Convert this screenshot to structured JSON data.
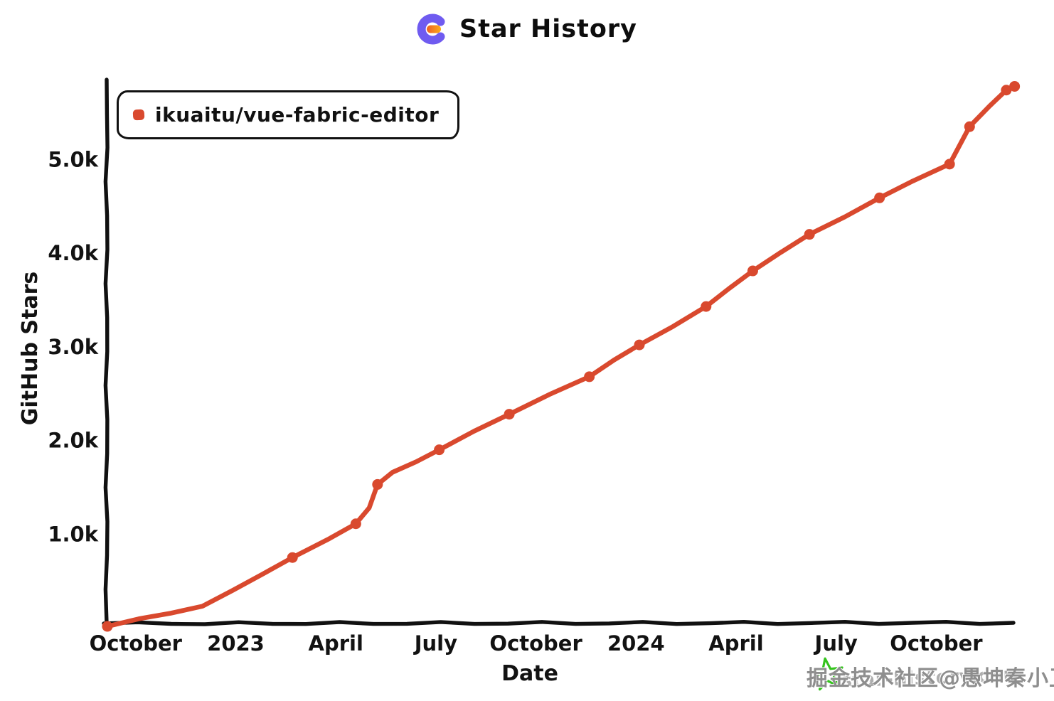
{
  "header": {
    "title": "Star History",
    "logo": {
      "name": "star-history-logo",
      "purple": "#6f5bf0",
      "orange_left": "#ee5f25",
      "orange_right": "#fbab18"
    }
  },
  "legend": {
    "items": [
      {
        "label": "ikuaitu/vue-fabric-editor",
        "color": "#d9492e"
      }
    ]
  },
  "watermark": {
    "site": "star-history.com",
    "overlay": "掘金技术社区@愚坤秦小卫",
    "star_color": "#35c31e",
    "site_color": "#aeaeae",
    "overlay_color": "#8e8e8e"
  },
  "chart_data": {
    "type": "line",
    "title": "Star History",
    "xlabel": "Date",
    "ylabel": "GitHub Stars",
    "grid": false,
    "legend_position": "top-left",
    "line_color": "#d9492e",
    "axis_color": "#111111",
    "x_axis": {
      "unit": "months since 2022-10-01",
      "lim": [
        -0.9,
        27.3
      ],
      "ticks": [
        {
          "t": 0,
          "label": "October"
        },
        {
          "t": 3,
          "label": "2023"
        },
        {
          "t": 6,
          "label": "April"
        },
        {
          "t": 9,
          "label": "July"
        },
        {
          "t": 12,
          "label": "October"
        },
        {
          "t": 15,
          "label": "2024"
        },
        {
          "t": 18,
          "label": "April"
        },
        {
          "t": 21,
          "label": "July"
        },
        {
          "t": 24,
          "label": "October"
        }
      ]
    },
    "y_axis": {
      "lim": [
        0,
        6000
      ],
      "ticks": [
        {
          "v": 1000,
          "label": "1.0k"
        },
        {
          "v": 2000,
          "label": "2.0k"
        },
        {
          "v": 3000,
          "label": "3.0k"
        },
        {
          "v": 4000,
          "label": "4.0k"
        },
        {
          "v": 5000,
          "label": "5.0k"
        }
      ]
    },
    "series": [
      {
        "name": "ikuaitu/vue-fabric-editor",
        "color": "#d9492e",
        "points": [
          {
            "date": "2022-10",
            "t": -0.85,
            "stars": 15,
            "marker": true
          },
          {
            "date": "2022-12",
            "t": 2.0,
            "stars": 230,
            "marker": false
          },
          {
            "date": "2023-02",
            "t": 4.7,
            "stars": 750,
            "marker": true
          },
          {
            "date": "2023-03",
            "t": 5.8,
            "stars": 950,
            "marker": false
          },
          {
            "date": "2023-04",
            "t": 6.6,
            "stars": 1110,
            "marker": true
          },
          {
            "date": "2023-04",
            "t": 7.0,
            "stars": 1280,
            "marker": false
          },
          {
            "date": "2023-05",
            "t": 7.25,
            "stars": 1530,
            "marker": true
          },
          {
            "date": "2023-05",
            "t": 7.7,
            "stars": 1660,
            "marker": false
          },
          {
            "date": "2023-07",
            "t": 9.1,
            "stars": 1900,
            "marker": true
          },
          {
            "date": "2023-09",
            "t": 11.2,
            "stars": 2280,
            "marker": true
          },
          {
            "date": "2023-10",
            "t": 12.4,
            "stars": 2490,
            "marker": false
          },
          {
            "date": "2023-11",
            "t": 13.6,
            "stars": 2680,
            "marker": true
          },
          {
            "date": "2024-01",
            "t": 15.1,
            "stars": 3020,
            "marker": true
          },
          {
            "date": "2024-03",
            "t": 17.1,
            "stars": 3430,
            "marker": true
          },
          {
            "date": "2024-04",
            "t": 18.5,
            "stars": 3810,
            "marker": true
          },
          {
            "date": "2024-06",
            "t": 20.2,
            "stars": 4200,
            "marker": true
          },
          {
            "date": "2024-08",
            "t": 22.3,
            "stars": 4590,
            "marker": true
          },
          {
            "date": "2024-09",
            "t": 23.3,
            "stars": 4770,
            "marker": false
          },
          {
            "date": "2024-10",
            "t": 24.4,
            "stars": 4950,
            "marker": true
          },
          {
            "date": "2024-11",
            "t": 25.0,
            "stars": 5350,
            "marker": true
          },
          {
            "date": "2024-11",
            "t": 25.6,
            "stars": 5570,
            "marker": false
          },
          {
            "date": "2024-12",
            "t": 26.1,
            "stars": 5740,
            "marker": true
          },
          {
            "date": "2024-12",
            "t": 26.35,
            "stars": 5780,
            "marker": true
          }
        ]
      }
    ]
  }
}
